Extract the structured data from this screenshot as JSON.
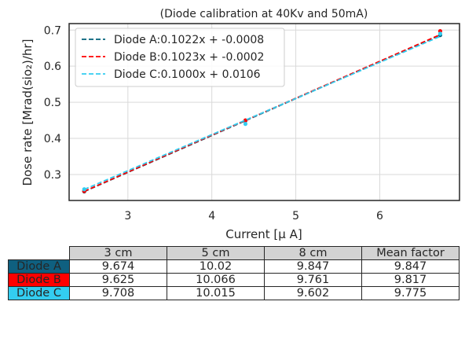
{
  "chart_data": {
    "type": "line",
    "title": "(Diode calibration at 40Kv and 50mA)",
    "xlabel": "Current [μ A]",
    "ylabel": "Dose rate [Mrad(sio₂)/hr]",
    "xlim": [
      2.3,
      6.95
    ],
    "ylim": [
      0.228,
      0.718
    ],
    "xticks": [
      3,
      4,
      5,
      6
    ],
    "yticks": [
      0.3,
      0.4,
      0.5,
      0.6,
      0.7
    ],
    "grid": true,
    "legend_position": "top-left",
    "series": [
      {
        "name": "Diode A:0.1022x + -0.0008",
        "color": "#00607a",
        "slope": 0.1022,
        "intercept": -0.0008,
        "x": [
          2.48,
          4.4,
          6.72
        ],
        "y": [
          0.253,
          0.449,
          0.686
        ]
      },
      {
        "name": "Diode B:0.1023x + -0.0002",
        "color": "#ff0000",
        "slope": 0.1023,
        "intercept": -0.0002,
        "x": [
          2.48,
          4.4,
          6.72
        ],
        "y": [
          0.254,
          0.45,
          0.697
        ]
      },
      {
        "name": "Diode C:0.1000x + 0.0106",
        "color": "#33cdf0",
        "slope": 0.1,
        "intercept": 0.0106,
        "x": [
          2.48,
          4.4,
          6.72
        ],
        "y": [
          0.259,
          0.44,
          0.69
        ]
      }
    ]
  },
  "table": {
    "columns": [
      "3 cm",
      "5 cm",
      "8 cm",
      "Mean factor"
    ],
    "rows": [
      {
        "label": "Diode A",
        "color": "#0f6080",
        "values": [
          "9.674",
          "10.02",
          "9.847",
          "9.847"
        ]
      },
      {
        "label": "Diode B",
        "color": "#ff0000",
        "values": [
          "9.625",
          "10.066",
          "9.761",
          "9.817"
        ]
      },
      {
        "label": "Diode C",
        "color": "#33cdf0",
        "values": [
          "9.708",
          "10.015",
          "9.602",
          "9.775"
        ]
      }
    ]
  }
}
